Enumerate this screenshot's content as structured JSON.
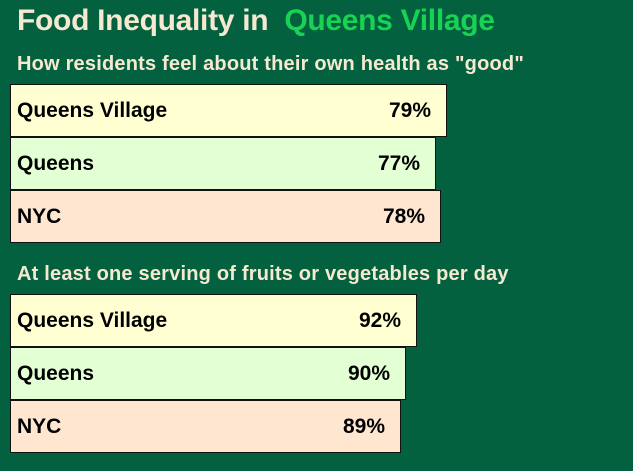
{
  "title": {
    "prefix": "Food Inequality in",
    "highlight": "Queens Village"
  },
  "colors": {
    "background": "#046140",
    "title_text": "#f5ead0",
    "highlight": "#18d353",
    "queens_village": "#ffffd2",
    "queens": "#e3ffd4",
    "nyc": "#ffe6d0"
  },
  "chart_data": [
    {
      "type": "bar",
      "orientation": "horizontal",
      "title": "How residents feel about their own health as \"good\"",
      "categories": [
        "Queens Village",
        "Queens",
        "NYC"
      ],
      "values": [
        79,
        77,
        78
      ],
      "value_labels": [
        "79%",
        "77%",
        "78%"
      ],
      "unit": "%"
    },
    {
      "type": "bar",
      "orientation": "horizontal",
      "title": "At least one serving of fruits or vegetables per day",
      "categories": [
        "Queens Village",
        "Queens",
        "NYC"
      ],
      "values": [
        92,
        90,
        89
      ],
      "value_labels": [
        "92%",
        "90%",
        "89%"
      ],
      "unit": "%"
    }
  ]
}
